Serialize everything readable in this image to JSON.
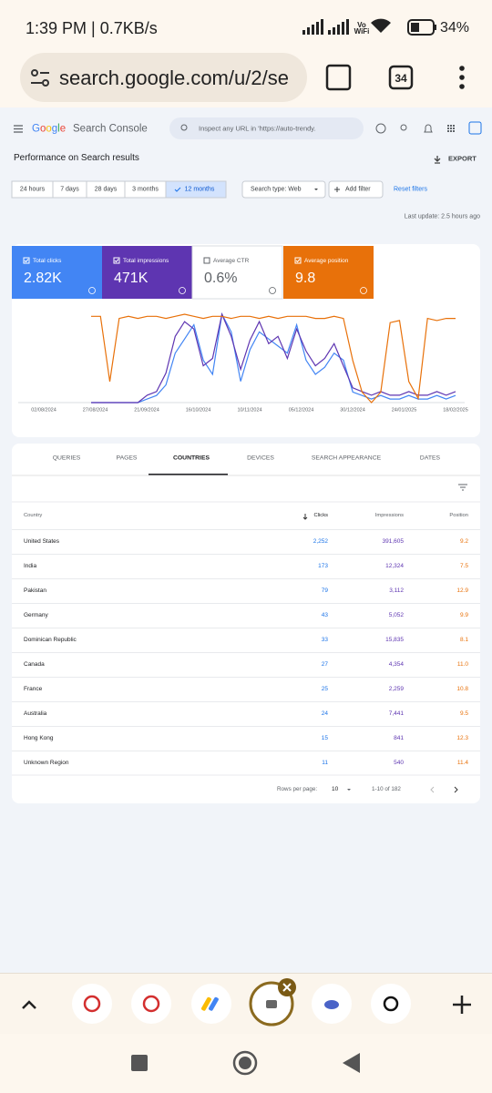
{
  "status": {
    "time": "1:39 PM | 0.7KB/s",
    "network": "Vo WiFi",
    "battery": "34%"
  },
  "browser": {
    "url": "search.google.com/u/2/se",
    "tab_count": "34"
  },
  "gsc": {
    "brand": "Google",
    "product": "Search Console",
    "search_placeholder": "Inspect any URL in 'https://auto-trendy.",
    "page_title": "Performance on Search results",
    "export": "EXPORT",
    "ranges": [
      "24 hours",
      "7 days",
      "28 days",
      "3 months",
      "12 months"
    ],
    "active_range": 4,
    "search_type": "Search type: Web",
    "add_filter": "Add filter",
    "reset": "Reset filters",
    "last_update": "Last update: 2.5 hours ago"
  },
  "metrics": [
    {
      "label": "Total clicks",
      "value": "2.82K",
      "color": "#4285f4",
      "selected": true,
      "values": [
        0,
        0,
        0,
        0,
        0,
        0,
        1,
        2,
        5,
        14,
        18,
        22,
        12,
        8,
        25,
        20,
        6,
        15,
        20,
        18,
        16,
        14,
        22,
        12,
        8,
        10,
        14,
        12,
        3,
        2,
        1,
        2,
        1,
        1,
        2,
        1,
        1,
        2,
        1,
        2
      ]
    },
    {
      "label": "Total impressions",
      "value": "471K",
      "color": "#5e35b1",
      "selected": true,
      "values": [
        0,
        0,
        0,
        0,
        0,
        0,
        2,
        3,
        8,
        18,
        22,
        20,
        10,
        12,
        24,
        18,
        9,
        17,
        22,
        16,
        18,
        12,
        20,
        14,
        10,
        12,
        16,
        10,
        4,
        3,
        2,
        3,
        2,
        2,
        3,
        2,
        2,
        3,
        2,
        3
      ]
    },
    {
      "label": "Average CTR",
      "value": "0.6%",
      "color": "#ffffff",
      "selected": false
    },
    {
      "label": "Average position",
      "value": "9.8",
      "color": "#e8710a",
      "selected": true,
      "invert_axis": true,
      "values": [
        9,
        9,
        40,
        10,
        9,
        10,
        9,
        9,
        10,
        9,
        8,
        9,
        10,
        9,
        9,
        10,
        9,
        9,
        10,
        9,
        10,
        9,
        9,
        9,
        10,
        10,
        9,
        10,
        30,
        45,
        50,
        45,
        12,
        11,
        40,
        48,
        10,
        11,
        10,
        10
      ]
    }
  ],
  "chart_data": {
    "type": "line",
    "x_labels": [
      "02/08/2024",
      "27/08/2024",
      "21/09/2024",
      "16/10/2024",
      "10/11/2024",
      "05/12/2024",
      "30/12/2024",
      "24/01/2025",
      "18/02/2025"
    ]
  },
  "tabs": [
    "QUERIES",
    "PAGES",
    "COUNTRIES",
    "DEVICES",
    "SEARCH APPEARANCE",
    "DATES"
  ],
  "active_tab": 2,
  "table": {
    "columns": [
      "Country",
      "Clicks",
      "Impressions",
      "Position"
    ],
    "rows": [
      [
        "United States",
        "2,252",
        "391,605",
        "9.2"
      ],
      [
        "India",
        "173",
        "12,324",
        "7.5"
      ],
      [
        "Pakistan",
        "79",
        "3,112",
        "12.9"
      ],
      [
        "Germany",
        "43",
        "5,052",
        "9.9"
      ],
      [
        "Dominican Republic",
        "33",
        "15,835",
        "8.1"
      ],
      [
        "Canada",
        "27",
        "4,354",
        "11.0"
      ],
      [
        "France",
        "25",
        "2,259",
        "10.8"
      ],
      [
        "Australia",
        "24",
        "7,441",
        "9.5"
      ],
      [
        "Hong Kong",
        "15",
        "841",
        "12.3"
      ],
      [
        "Unknown Region",
        "11",
        "540",
        "11.4"
      ]
    ]
  },
  "pagination": {
    "rows_label": "Rows per page:",
    "rows": "10",
    "range": "1-10 of 182"
  }
}
